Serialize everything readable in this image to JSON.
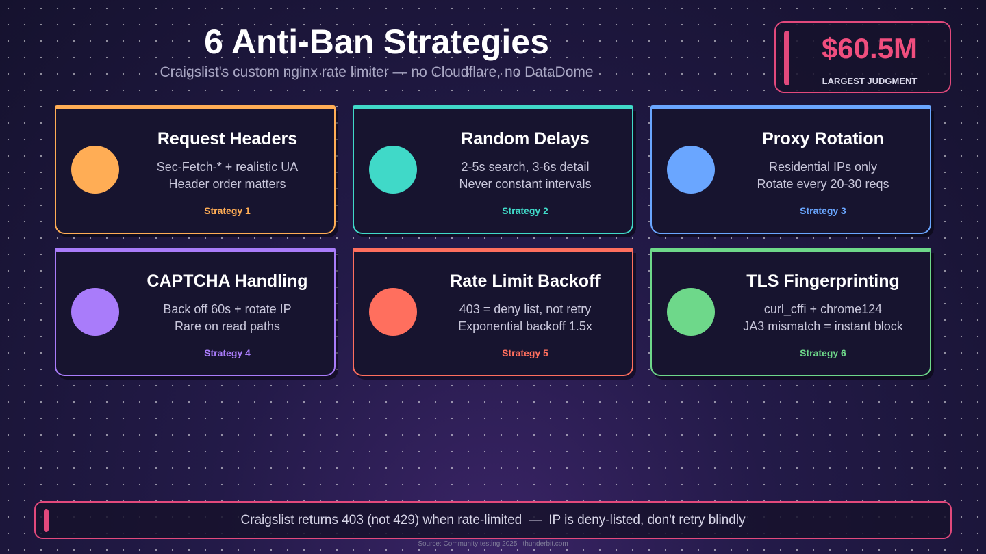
{
  "header": {
    "title": "6 Anti-Ban Strategies",
    "subtitle": "Craigslist's custom nginx rate limiter — no Cloudflare, no DataDome"
  },
  "stat": {
    "value": "$60.5M",
    "label": "LARGEST JUDGMENT"
  },
  "cards": [
    {
      "title": "Request Headers",
      "lines": [
        "Sec-Fetch-* + realistic UA",
        "Header order matters"
      ],
      "tag": "Strategy 1"
    },
    {
      "title": "Random Delays",
      "lines": [
        "2-5s search, 3-6s detail",
        "Never constant intervals"
      ],
      "tag": "Strategy 2"
    },
    {
      "title": "Proxy Rotation",
      "lines": [
        "Residential IPs only",
        "Rotate every 20-30 reqs"
      ],
      "tag": "Strategy 3"
    },
    {
      "title": "CAPTCHA Handling",
      "lines": [
        "Back off 60s + rotate IP",
        "Rare on read paths"
      ],
      "tag": "Strategy 4"
    },
    {
      "title": "Rate Limit Backoff",
      "lines": [
        "403 = deny list, not retry",
        "Exponential backoff 1.5x"
      ],
      "tag": "Strategy 5"
    },
    {
      "title": "TLS Fingerprinting",
      "lines": [
        "curl_cffi + chrome124",
        "JA3 mismatch = instant block"
      ],
      "tag": "Strategy 6"
    }
  ],
  "callout": {
    "left": "Craigslist returns 403 (not 429) when rate-limited",
    "separator": "—",
    "right": "IP is deny-listed, don't retry blindly"
  },
  "source": "Source: Community testing 2025  |  thunderbit.com"
}
